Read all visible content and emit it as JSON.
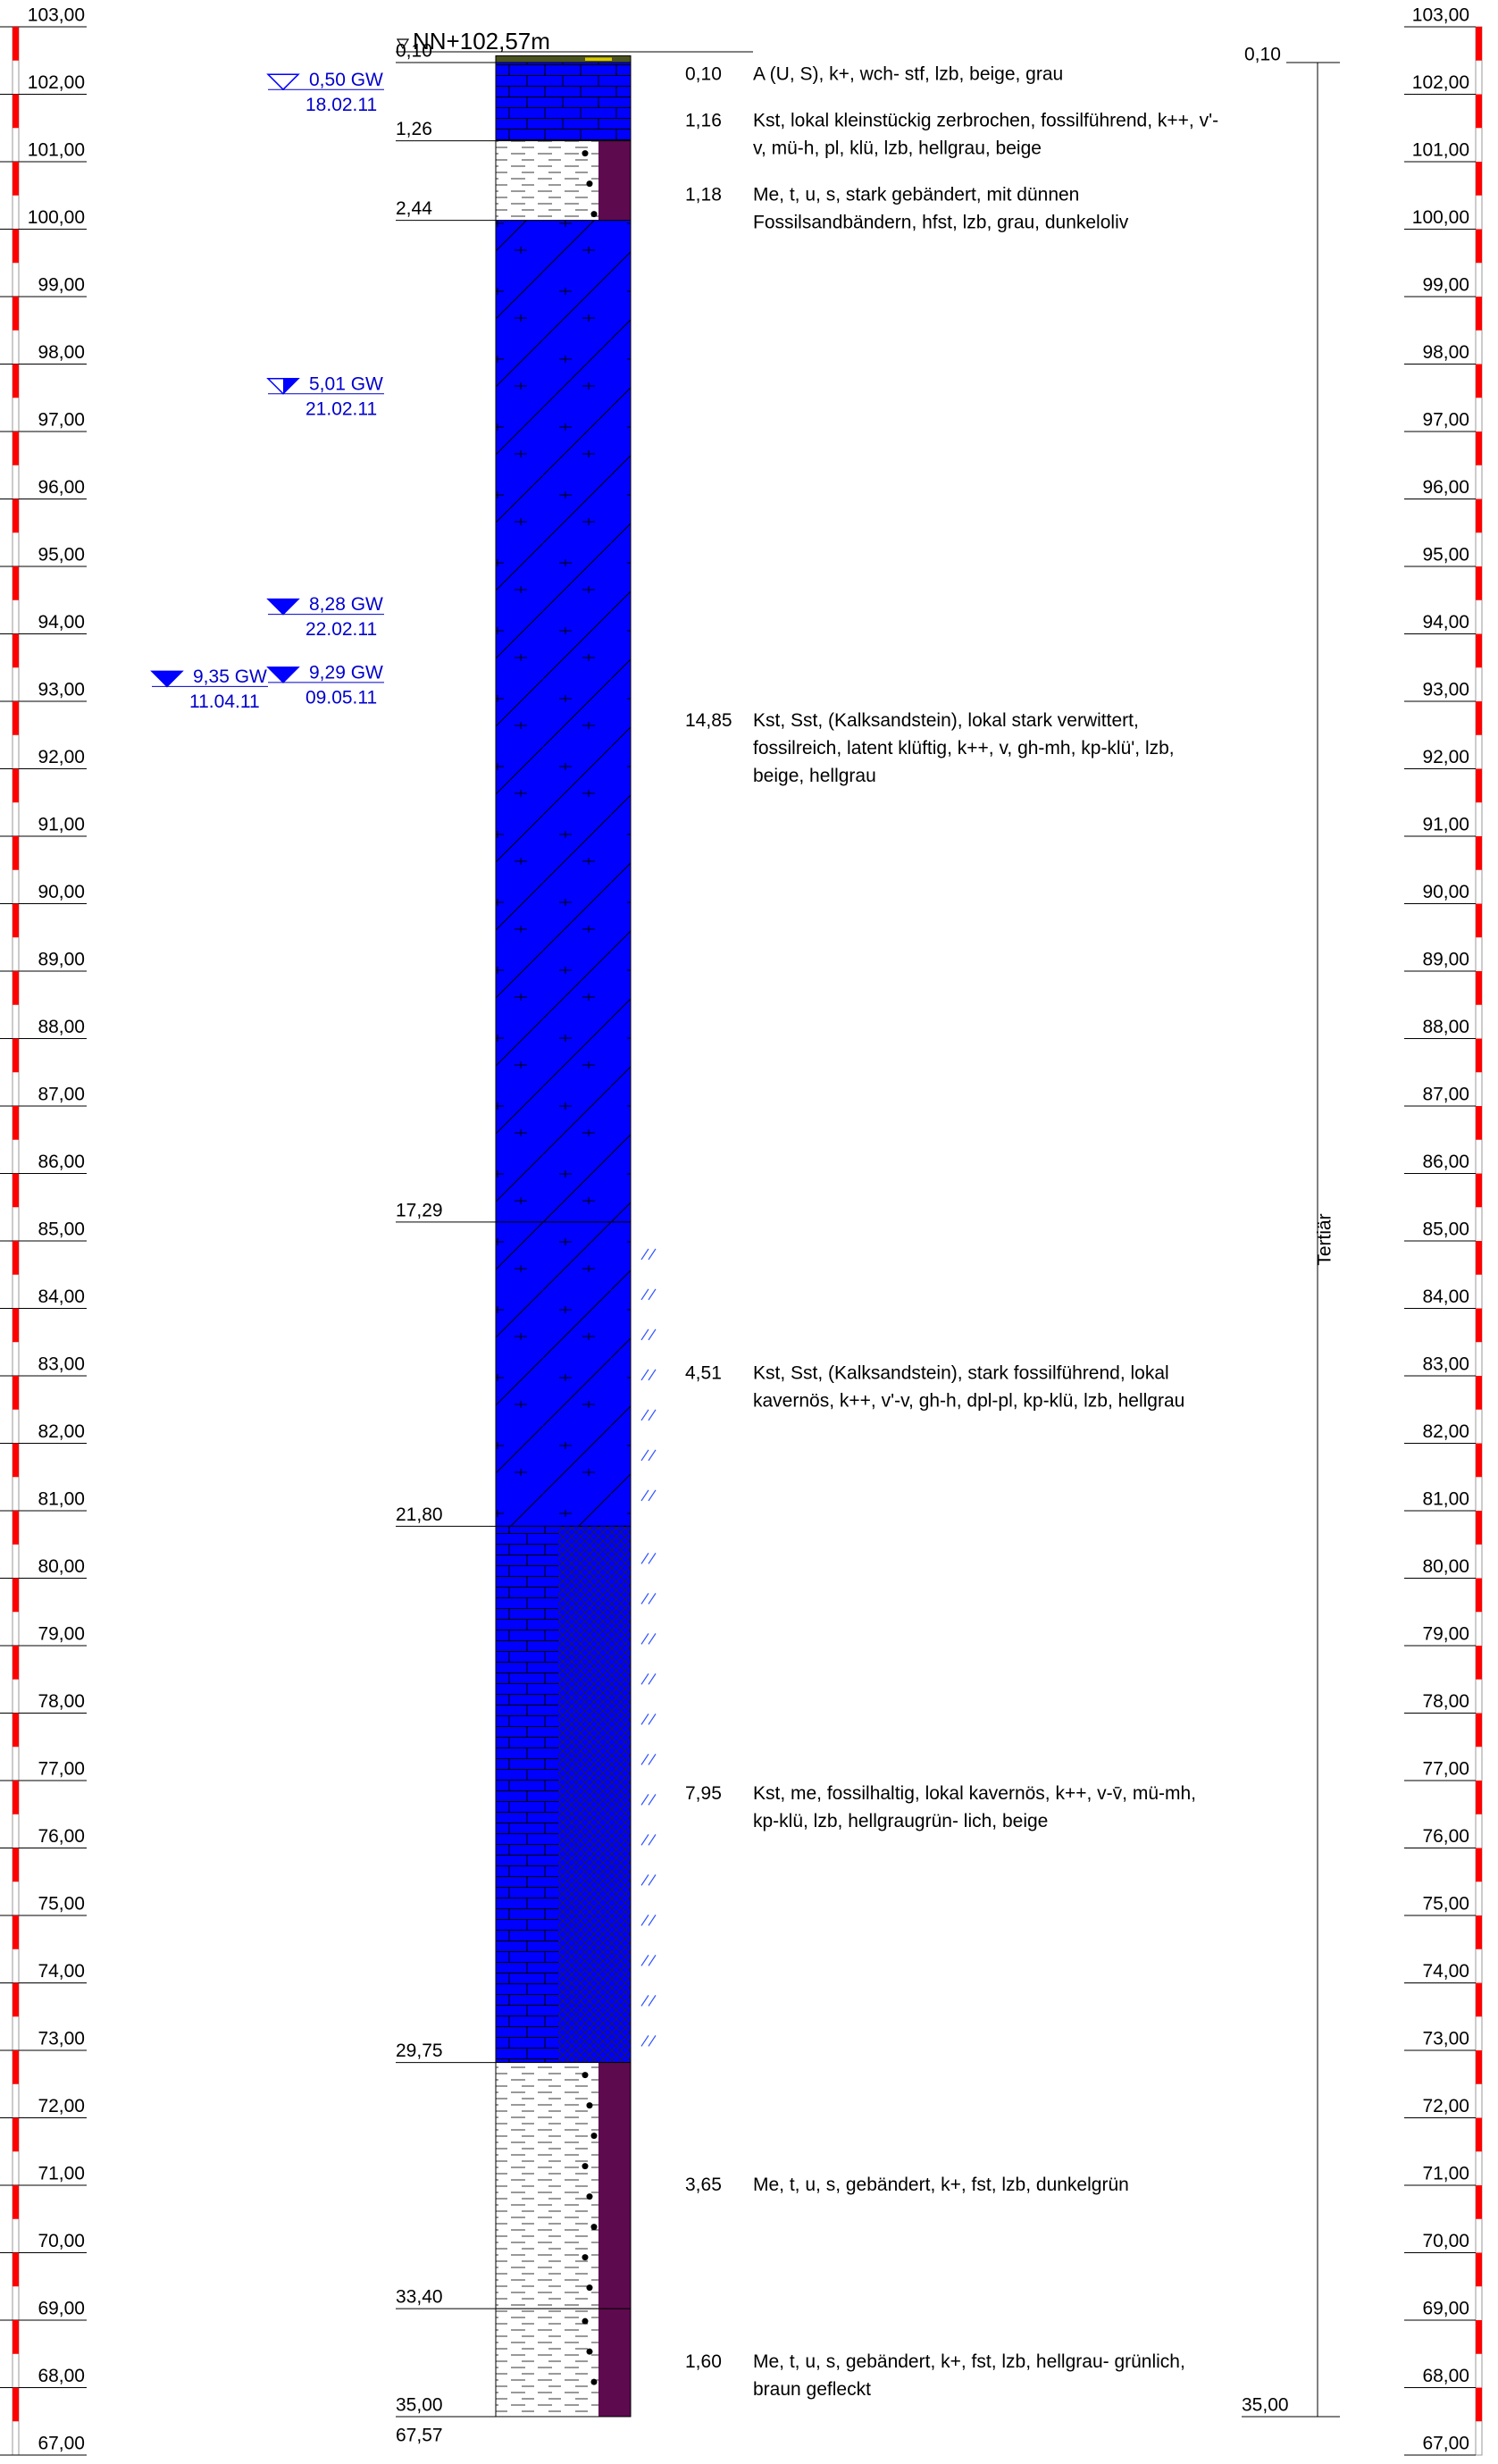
{
  "header": {
    "reference": "NN+102,57m"
  },
  "elevation_scale": [
    "103,00",
    "102,00",
    "101,00",
    "100,00",
    "99,00",
    "98,00",
    "97,00",
    "96,00",
    "95,00",
    "94,00",
    "93,00",
    "92,00",
    "91,00",
    "90,00",
    "89,00",
    "88,00",
    "87,00",
    "86,00",
    "85,00",
    "84,00",
    "83,00",
    "82,00",
    "81,00",
    "80,00",
    "79,00",
    "78,00",
    "77,00",
    "76,00",
    "75,00",
    "74,00",
    "73,00",
    "72,00",
    "71,00",
    "70,00",
    "69,00",
    "68,00",
    "67,00"
  ],
  "water_levels": [
    {
      "label": "0,50 GW",
      "date": "18.02.11"
    },
    {
      "label": "5,01 GW",
      "date": "21.02.11"
    },
    {
      "label": "8,28 GW",
      "date": "22.02.11"
    },
    {
      "label": "9,35 GW",
      "date": "11.04.11"
    },
    {
      "label": "9,29 GW",
      "date": "09.05.11"
    }
  ],
  "layers": [
    {
      "depth": "0,10",
      "thickness": "0,10",
      "description": [
        "A (U, S), k+, wch- stf, lzb, beige, grau"
      ]
    },
    {
      "depth": "1,26",
      "thickness": "1,16",
      "description": [
        "Kst, lokal kleinstückig zerbrochen, fossilführend, k++, v'-",
        "v, mü-h, pl, klü, lzb, hellgrau, beige"
      ]
    },
    {
      "depth": "2,44",
      "thickness": "1,18",
      "description": [
        "Me, t, u, s, stark gebändert, mit dünnen",
        "Fossilsandbändern, hfst, lzb, grau, dunkeloliv"
      ]
    },
    {
      "depth": "17,29",
      "thickness": "14,85",
      "description": [
        "Kst, Sst, (Kalksandstein), lokal stark verwittert,",
        "fossilreich, latent klüftig, k++, v, gh-mh, kp-klü', lzb,",
        "beige, hellgrau"
      ]
    },
    {
      "depth": "21,80",
      "thickness": "4,51",
      "description": [
        "Kst, Sst, (Kalksandstein), stark fossilführend, lokal",
        "kavernös, k++, v'-v, gh-h, dpl-pl, kp-klü, lzb, hellgrau"
      ]
    },
    {
      "depth": "29,75",
      "thickness": "7,95",
      "description": [
        "Kst, me, fossilhaltig, lokal kavernös, k++, v-v̄, mü-mh,",
        "kp-klü, lzb, hellgraugrün- lich, beige"
      ]
    },
    {
      "depth": "33,40",
      "thickness": "3,65",
      "description": [
        "Me, t, u, s, gebändert, k+, fst, lzb, dunkelgrün"
      ]
    },
    {
      "depth": "35,00",
      "thickness": "1,60",
      "description": [
        "Me, t, u, s, gebändert, k+, fst, lzb, hellgrau- grünlich,",
        "braun gefleckt"
      ]
    }
  ],
  "stratigraphy": {
    "top": "0,10",
    "bottom": "35,00",
    "unit": "Tertiär"
  },
  "end_elevation": "67,57"
}
